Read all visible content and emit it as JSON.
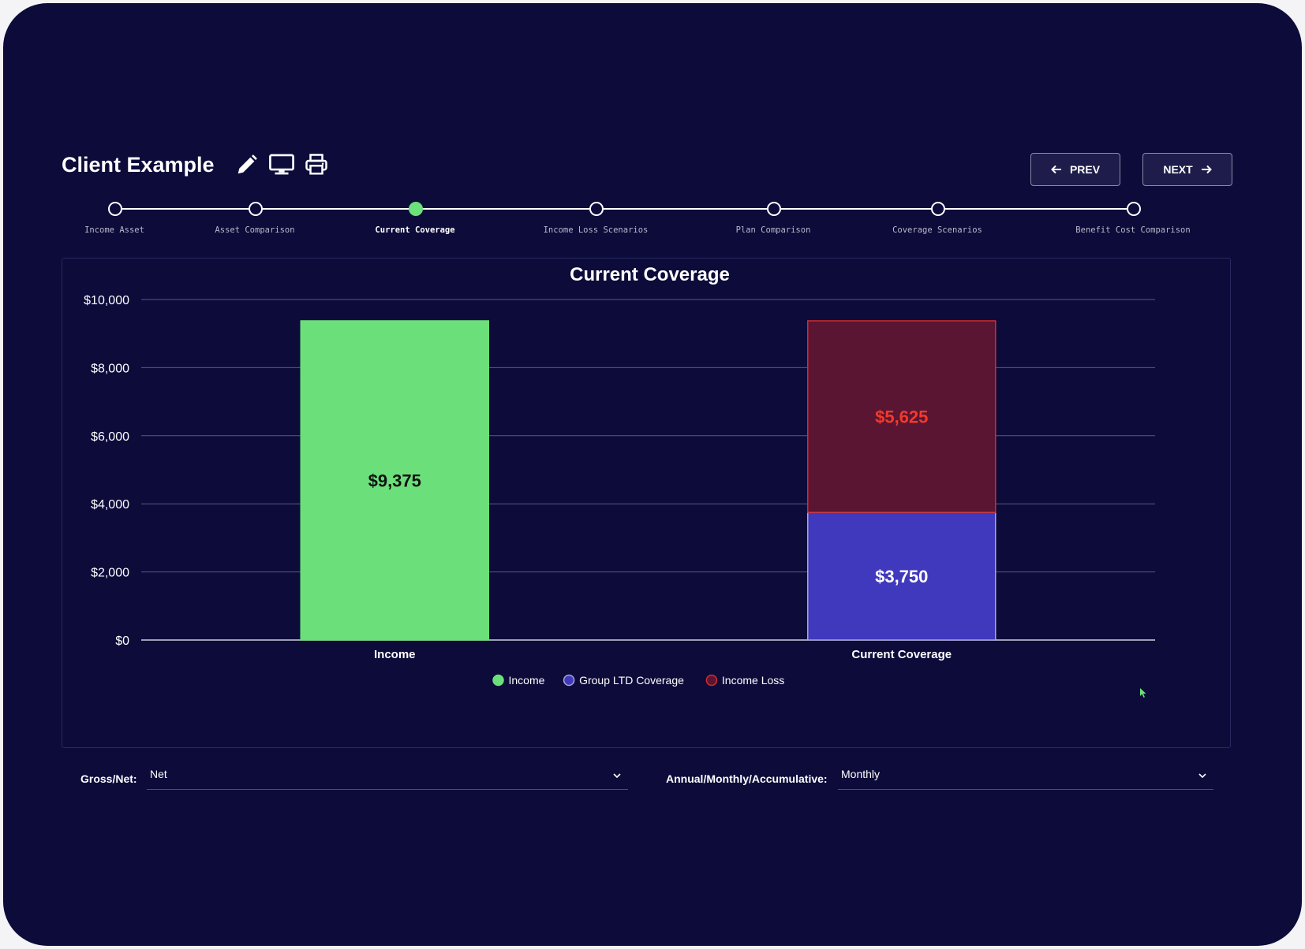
{
  "header": {
    "title": "Client Example",
    "prev_label": "PREV",
    "next_label": "NEXT"
  },
  "stepper": {
    "steps": [
      {
        "label": "Income Asset",
        "active": false
      },
      {
        "label": "Asset Comparison",
        "active": false
      },
      {
        "label": "Current Coverage",
        "active": true
      },
      {
        "label": "Income Loss Scenarios",
        "active": false
      },
      {
        "label": "Plan Comparison",
        "active": false
      },
      {
        "label": "Coverage Scenarios",
        "active": false
      },
      {
        "label": "Benefit Cost Comparison",
        "active": false
      }
    ]
  },
  "chart_data": {
    "type": "bar",
    "stacked": true,
    "title": "Current Coverage",
    "xlabel": "",
    "ylabel": "",
    "ylim": [
      0,
      10000
    ],
    "yticks": [
      0,
      2000,
      4000,
      6000,
      8000,
      10000
    ],
    "ytick_labels": [
      "$0",
      "$2,000",
      "$4,000",
      "$6,000",
      "$8,000",
      "$10,000"
    ],
    "categories": [
      "Income",
      "Current Coverage"
    ],
    "series": [
      {
        "name": "Income",
        "color": "#6be07a",
        "border": "#6be07a",
        "label_color": "#111111",
        "values": [
          9375,
          0
        ],
        "labels": [
          "$9,375",
          ""
        ]
      },
      {
        "name": "Group LTD Coverage",
        "color": "#4139bd",
        "border": "#a7a6d8",
        "label_color": "#ffffff",
        "values": [
          0,
          3750
        ],
        "labels": [
          "",
          "$3,750"
        ]
      },
      {
        "name": "Income Loss",
        "color": "#5a1532",
        "border": "#d42d2d",
        "label_color": "#f23a2a",
        "values": [
          0,
          5625
        ],
        "labels": [
          "",
          "$5,625"
        ]
      }
    ],
    "grid": true,
    "legend_position": "bottom"
  },
  "filters": {
    "gross_net_label": "Gross/Net:",
    "gross_net_value": "Net",
    "period_label": "Annual/Monthly/Accumulative:",
    "period_value": "Monthly"
  },
  "colors": {
    "background": "#0c0b3a",
    "accent_green": "#6ce07a",
    "accent_blue": "#4139bd",
    "accent_red": "#d42d2d"
  }
}
